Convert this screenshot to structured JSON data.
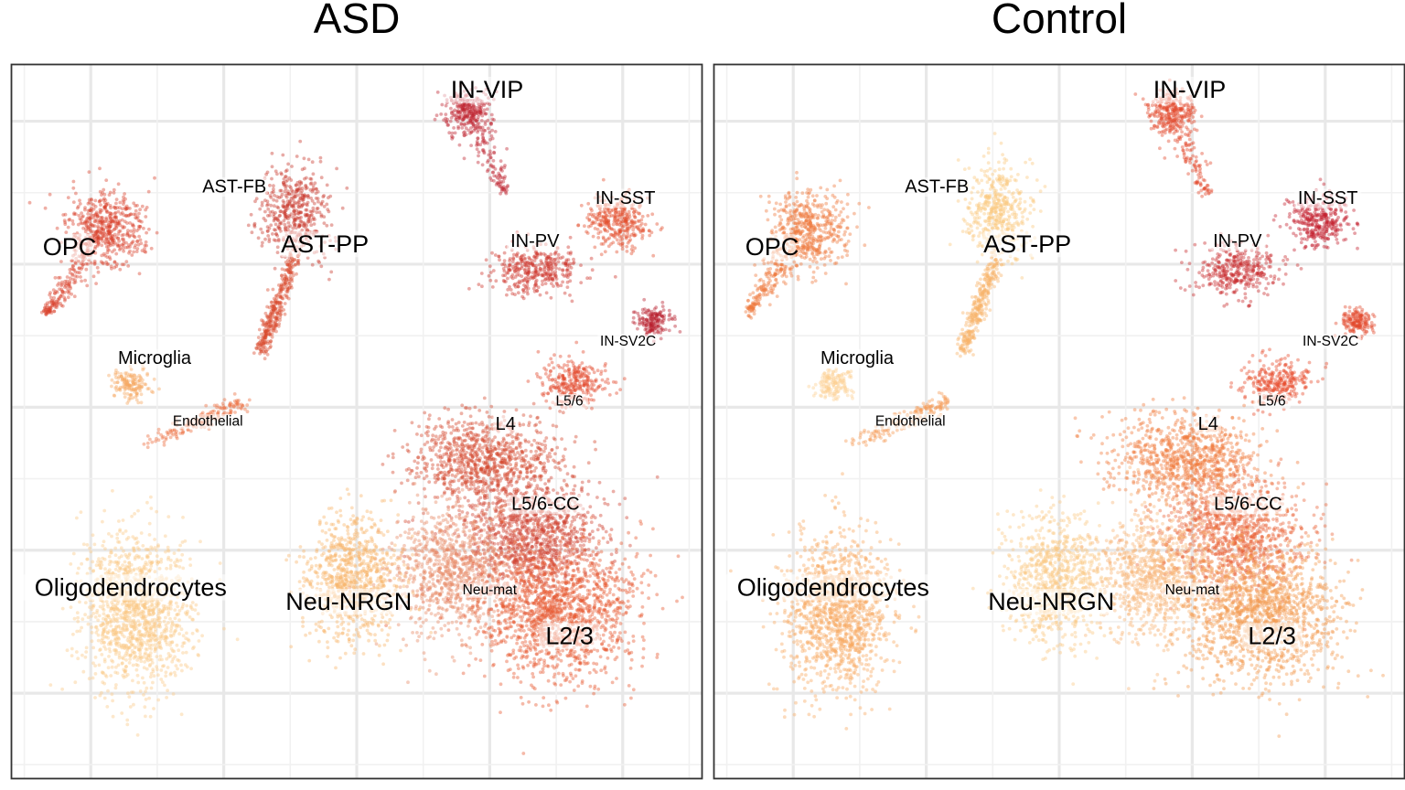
{
  "chart_data": {
    "type": "scatter",
    "panels": [
      {
        "title": "ASD",
        "xlim": [
          -13,
          13
        ],
        "ylim": [
          -13,
          12
        ],
        "clusters": [
          {
            "name": "OPC",
            "label_x": -10.8,
            "label_y": 5.6,
            "label_size": "large",
            "shape": "pear",
            "x": -9.4,
            "y": 6.2,
            "rx": 1.45,
            "ry": 1.3,
            "tail_to": [
              -11.7,
              3.3
            ],
            "n": 700,
            "color": "#d8412c"
          },
          {
            "name": "AST-FB",
            "label_x": -4.6,
            "label_y": 7.7,
            "label_size": "medium",
            "shape": "blob",
            "x": -2.3,
            "y": 6.9,
            "rx": 1.25,
            "ry": 1.7,
            "n": 450,
            "color": "#c8362a"
          },
          {
            "name": "AST-PP",
            "label_x": -1.2,
            "label_y": 5.7,
            "label_size": "large",
            "shape": "streak",
            "x": -2.3,
            "y": 5.3,
            "tail_to": [
              -3.6,
              2.0
            ],
            "n": 320,
            "color": "#d8492e"
          },
          {
            "name": "IN-VIP",
            "label_x": 4.9,
            "label_y": 11.1,
            "label_size": "large",
            "shape": "pear",
            "x": 4.2,
            "y": 10.3,
            "rx": 0.85,
            "ry": 0.8,
            "tail_to": [
              5.6,
              7.4
            ],
            "n": 380,
            "color": "#be2330"
          },
          {
            "name": "IN-SST",
            "label_x": 10.1,
            "label_y": 7.3,
            "label_size": "medium",
            "shape": "blob",
            "x": 9.8,
            "y": 6.5,
            "rx": 1.15,
            "ry": 0.95,
            "n": 330,
            "color": "#e24d2c"
          },
          {
            "name": "IN-PV",
            "label_x": 6.7,
            "label_y": 5.8,
            "label_size": "medium",
            "shape": "blob",
            "x": 6.7,
            "y": 4.8,
            "rx": 1.6,
            "ry": 0.9,
            "n": 360,
            "color": "#cc3229"
          },
          {
            "name": "IN-SV2C",
            "label_x": 10.2,
            "label_y": 2.3,
            "label_size": "small",
            "shape": "blob",
            "x": 11.2,
            "y": 3.0,
            "rx": 0.6,
            "ry": 0.45,
            "n": 160,
            "color": "#b81c2c"
          },
          {
            "name": "Microglia",
            "label_x": -7.6,
            "label_y": 1.7,
            "label_size": "medium",
            "shape": "blob",
            "x": -8.5,
            "y": 0.8,
            "rx": 0.75,
            "ry": 0.55,
            "n": 150,
            "color": "#f6a860"
          },
          {
            "name": "Endothelial",
            "label_x": -5.6,
            "label_y": -0.5,
            "label_size": "small",
            "shape": "streak",
            "x": -7.9,
            "y": -1.3,
            "tail_to": [
              -4.2,
              0.2
            ],
            "n": 160,
            "color": "#ec6b3c"
          },
          {
            "name": "L5/6",
            "label_x": 8.0,
            "label_y": 0.2,
            "label_size": "small",
            "shape": "blob",
            "x": 8.2,
            "y": 0.9,
            "rx": 1.25,
            "ry": 0.8,
            "n": 280,
            "color": "#e3472a"
          },
          {
            "name": "L4",
            "label_x": 5.6,
            "label_y": -0.6,
            "label_size": "medium",
            "shape": "blob",
            "x": 4.8,
            "y": -1.8,
            "rx": 2.8,
            "ry": 1.5,
            "n": 900,
            "color": "#d4482e"
          },
          {
            "name": "L5/6-CC",
            "label_x": 7.1,
            "label_y": -3.4,
            "label_size": "medium",
            "shape": "blob",
            "x": 6.6,
            "y": -4.5,
            "rx": 2.6,
            "ry": 2.0,
            "n": 1100,
            "color": "#cf4030"
          },
          {
            "name": "Neu-mat",
            "label_x": 5.0,
            "label_y": -6.4,
            "label_size": "small",
            "shape": "blob",
            "x": 3.6,
            "y": -5.8,
            "rx": 2.3,
            "ry": 2.3,
            "n": 900,
            "color": "#e68a66"
          },
          {
            "name": "L2/3",
            "label_x": 8.0,
            "label_y": -8.0,
            "label_size": "large",
            "shape": "blob",
            "x": 7.6,
            "y": -7.2,
            "rx": 2.9,
            "ry": 2.3,
            "n": 1500,
            "color": "#e6572f"
          },
          {
            "name": "Neu-NRGN",
            "label_x": -0.3,
            "label_y": -6.8,
            "label_size": "large",
            "shape": "blob",
            "x": -0.2,
            "y": -6.0,
            "rx": 1.75,
            "ry": 2.2,
            "n": 850,
            "color": "#f7b46c"
          },
          {
            "name": "Oligodendrocytes",
            "label_x": -8.5,
            "label_y": -6.3,
            "label_size": "large",
            "shape": "blob",
            "x": -8.3,
            "y": -7.2,
            "rx": 2.0,
            "ry": 2.7,
            "n": 1300,
            "color": "#fbc986"
          }
        ]
      },
      {
        "title": "Control",
        "xlim": [
          -13,
          13
        ],
        "ylim": [
          -13,
          12
        ],
        "clusters": [
          {
            "name": "OPC",
            "label_x": -10.8,
            "label_y": 5.6,
            "label_size": "large",
            "shape": "pear",
            "x": -9.4,
            "y": 6.2,
            "rx": 1.45,
            "ry": 1.3,
            "tail_to": [
              -11.7,
              3.3
            ],
            "n": 700,
            "color": "#ee7a3e"
          },
          {
            "name": "AST-FB",
            "label_x": -4.6,
            "label_y": 7.7,
            "label_size": "medium",
            "shape": "blob",
            "x": -2.3,
            "y": 6.9,
            "rx": 1.25,
            "ry": 1.7,
            "n": 450,
            "color": "#fbc77f"
          },
          {
            "name": "AST-PP",
            "label_x": -1.2,
            "label_y": 5.7,
            "label_size": "large",
            "shape": "streak",
            "x": -2.3,
            "y": 5.3,
            "tail_to": [
              -3.6,
              2.0
            ],
            "n": 320,
            "color": "#f8b368"
          },
          {
            "name": "IN-VIP",
            "label_x": 4.9,
            "label_y": 11.1,
            "label_size": "large",
            "shape": "pear",
            "x": 4.2,
            "y": 10.3,
            "rx": 0.85,
            "ry": 0.8,
            "tail_to": [
              5.6,
              7.4
            ],
            "n": 380,
            "color": "#e2482c"
          },
          {
            "name": "IN-SST",
            "label_x": 10.1,
            "label_y": 7.3,
            "label_size": "medium",
            "shape": "blob",
            "x": 9.8,
            "y": 6.5,
            "rx": 1.15,
            "ry": 0.95,
            "n": 330,
            "color": "#c41f2e"
          },
          {
            "name": "IN-PV",
            "label_x": 6.7,
            "label_y": 5.8,
            "label_size": "medium",
            "shape": "blob",
            "x": 6.7,
            "y": 4.8,
            "rx": 1.6,
            "ry": 0.9,
            "n": 360,
            "color": "#c92a2d"
          },
          {
            "name": "IN-SV2C",
            "label_x": 10.2,
            "label_y": 2.3,
            "label_size": "small",
            "shape": "blob",
            "x": 11.2,
            "y": 3.0,
            "rx": 0.6,
            "ry": 0.45,
            "n": 160,
            "color": "#e2482c"
          },
          {
            "name": "Microglia",
            "label_x": -7.6,
            "label_y": 1.7,
            "label_size": "medium",
            "shape": "blob",
            "x": -8.5,
            "y": 0.8,
            "rx": 0.75,
            "ry": 0.55,
            "n": 150,
            "color": "#fccf92"
          },
          {
            "name": "Endothelial",
            "label_x": -5.6,
            "label_y": -0.5,
            "label_size": "small",
            "shape": "streak",
            "x": -7.9,
            "y": -1.3,
            "tail_to": [
              -4.2,
              0.2
            ],
            "n": 160,
            "color": "#f59a55"
          },
          {
            "name": "L5/6",
            "label_x": 8.0,
            "label_y": 0.2,
            "label_size": "small",
            "shape": "blob",
            "x": 8.2,
            "y": 0.9,
            "rx": 1.25,
            "ry": 0.8,
            "n": 280,
            "color": "#e84a2a"
          },
          {
            "name": "L4",
            "label_x": 5.6,
            "label_y": -0.6,
            "label_size": "medium",
            "shape": "blob",
            "x": 4.8,
            "y": -1.8,
            "rx": 2.8,
            "ry": 1.5,
            "n": 900,
            "color": "#f07c3f"
          },
          {
            "name": "L5/6-CC",
            "label_x": 7.1,
            "label_y": -3.4,
            "label_size": "medium",
            "shape": "blob",
            "x": 6.6,
            "y": -4.5,
            "rx": 2.6,
            "ry": 2.0,
            "n": 1100,
            "color": "#e9633a"
          },
          {
            "name": "Neu-mat",
            "label_x": 5.0,
            "label_y": -6.4,
            "label_size": "small",
            "shape": "blob",
            "x": 3.6,
            "y": -5.8,
            "rx": 2.3,
            "ry": 2.3,
            "n": 900,
            "color": "#f8b676"
          },
          {
            "name": "L2/3",
            "label_x": 8.0,
            "label_y": -8.0,
            "label_size": "large",
            "shape": "blob",
            "x": 7.6,
            "y": -7.2,
            "rx": 2.9,
            "ry": 2.3,
            "n": 1500,
            "color": "#f49a52"
          },
          {
            "name": "Neu-NRGN",
            "label_x": -0.3,
            "label_y": -6.8,
            "label_size": "large",
            "shape": "blob",
            "x": -0.2,
            "y": -6.0,
            "rx": 1.75,
            "ry": 2.2,
            "n": 850,
            "color": "#fbc983"
          },
          {
            "name": "Oligodendrocytes",
            "label_x": -8.5,
            "label_y": -6.3,
            "label_size": "large",
            "shape": "blob",
            "x": -8.3,
            "y": -7.2,
            "rx": 2.0,
            "ry": 2.7,
            "n": 1300,
            "color": "#f8aa62"
          }
        ]
      }
    ],
    "grid": true,
    "legend": "none"
  }
}
